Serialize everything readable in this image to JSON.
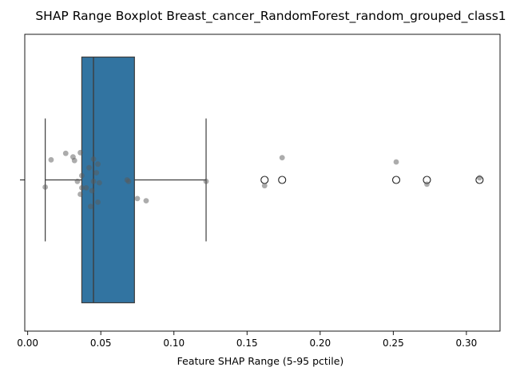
{
  "chart_data": {
    "type": "boxplot",
    "title": "SHAP Range Boxplot Breast_cancer_RandomForest_random_grouped_class1",
    "xlabel": "Feature SHAP Range (5-95 pctile)",
    "ylabel": "",
    "xlim": [
      -0.002,
      0.323
    ],
    "xticks": [
      0.0,
      0.05,
      0.1,
      0.15,
      0.2,
      0.25,
      0.3
    ],
    "xtick_labels": [
      "0.00",
      "0.05",
      "0.10",
      "0.15",
      "0.20",
      "0.25",
      "0.30"
    ],
    "grid": false,
    "legend": "none",
    "colors": {
      "box": "#3274a1",
      "line": "#3d3d3d",
      "points": "#5a5a5a"
    },
    "box": {
      "q1": 0.037,
      "median": 0.045,
      "q3": 0.073,
      "whisker_low": 0.012,
      "whisker_high": 0.122
    },
    "outliers": [
      0.162,
      0.174,
      0.252,
      0.273,
      0.309
    ],
    "points": [
      {
        "x": 0.012,
        "jitter": -0.1
      },
      {
        "x": 0.016,
        "jitter": 0.28
      },
      {
        "x": 0.026,
        "jitter": 0.37
      },
      {
        "x": 0.031,
        "jitter": 0.32
      },
      {
        "x": 0.032,
        "jitter": 0.27
      },
      {
        "x": 0.034,
        "jitter": -0.02
      },
      {
        "x": 0.036,
        "jitter": 0.38
      },
      {
        "x": 0.036,
        "jitter": -0.2
      },
      {
        "x": 0.037,
        "jitter": 0.06
      },
      {
        "x": 0.037,
        "jitter": -0.11
      },
      {
        "x": 0.04,
        "jitter": -0.11
      },
      {
        "x": 0.042,
        "jitter": 0.17
      },
      {
        "x": 0.043,
        "jitter": -0.37
      },
      {
        "x": 0.044,
        "jitter": -0.15
      },
      {
        "x": 0.045,
        "jitter": -0.02
      },
      {
        "x": 0.045,
        "jitter": 0.29
      },
      {
        "x": 0.047,
        "jitter": 0.1
      },
      {
        "x": 0.048,
        "jitter": 0.22
      },
      {
        "x": 0.048,
        "jitter": -0.31
      },
      {
        "x": 0.049,
        "jitter": -0.04
      },
      {
        "x": 0.068,
        "jitter": 0.0
      },
      {
        "x": 0.069,
        "jitter": -0.02
      },
      {
        "x": 0.075,
        "jitter": -0.26
      },
      {
        "x": 0.081,
        "jitter": -0.29
      },
      {
        "x": 0.122,
        "jitter": -0.02
      },
      {
        "x": 0.162,
        "jitter": -0.08
      },
      {
        "x": 0.174,
        "jitter": 0.31
      },
      {
        "x": 0.252,
        "jitter": 0.25
      },
      {
        "x": 0.273,
        "jitter": -0.06
      },
      {
        "x": 0.309,
        "jitter": 0.03
      }
    ]
  }
}
